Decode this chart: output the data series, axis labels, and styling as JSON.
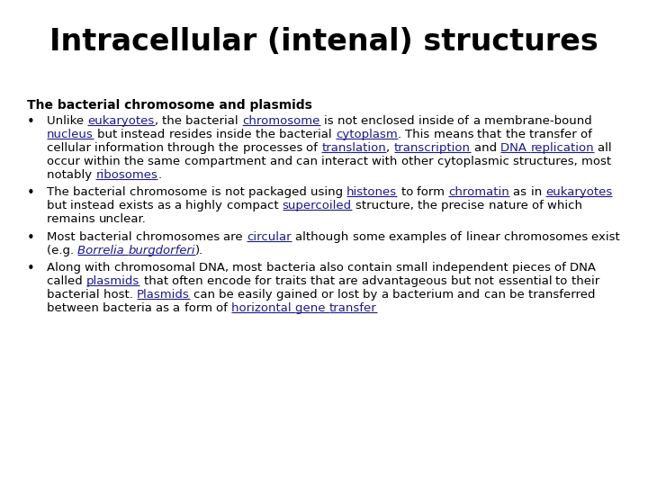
{
  "title": "Intracellular (intenal) structures",
  "background_color": "#ffffff",
  "title_fontsize": 24,
  "title_fontweight": "bold",
  "subtitle": "The bacterial chromosome and plasmids",
  "subtitle_fontsize": 10,
  "body_fontsize": 9.5,
  "link_color": "#1a1a8c",
  "text_color": "#000000",
  "bullets": [
    [
      {
        "text": "Unlike ",
        "style": "normal",
        "color": "#000000"
      },
      {
        "text": "eukaryotes",
        "style": "underline",
        "color": "#1a1a8c"
      },
      {
        "text": ", the bacterial ",
        "style": "normal",
        "color": "#000000"
      },
      {
        "text": "chromosome",
        "style": "underline",
        "color": "#1a1a8c"
      },
      {
        "text": " is not enclosed inside of a membrane-bound ",
        "style": "normal",
        "color": "#000000"
      },
      {
        "text": "nucleus",
        "style": "underline",
        "color": "#1a1a8c"
      },
      {
        "text": " but instead resides inside the bacterial ",
        "style": "normal",
        "color": "#000000"
      },
      {
        "text": "cytoplasm",
        "style": "underline",
        "color": "#1a1a8c"
      },
      {
        "text": ". This means that the transfer of cellular information through the processes of ",
        "style": "normal",
        "color": "#000000"
      },
      {
        "text": "translation",
        "style": "underline",
        "color": "#1a1a8c"
      },
      {
        "text": ", ",
        "style": "normal",
        "color": "#000000"
      },
      {
        "text": "transcription",
        "style": "underline",
        "color": "#1a1a8c"
      },
      {
        "text": " and ",
        "style": "normal",
        "color": "#000000"
      },
      {
        "text": "DNA replication",
        "style": "underline",
        "color": "#1a1a8c"
      },
      {
        "text": " all occur within the same compartment and can interact with other cytoplasmic structures, most notably ",
        "style": "normal",
        "color": "#000000"
      },
      {
        "text": "ribosomes",
        "style": "underline",
        "color": "#1a1a8c"
      },
      {
        "text": ".",
        "style": "normal",
        "color": "#000000"
      }
    ],
    [
      {
        "text": "The bacterial chromosome is not packaged using ",
        "style": "normal",
        "color": "#000000"
      },
      {
        "text": "histones",
        "style": "underline",
        "color": "#1a1a8c"
      },
      {
        "text": " to form ",
        "style": "normal",
        "color": "#000000"
      },
      {
        "text": "chromatin",
        "style": "underline",
        "color": "#1a1a8c"
      },
      {
        "text": " as in ",
        "style": "normal",
        "color": "#000000"
      },
      {
        "text": "eukaryotes",
        "style": "underline",
        "color": "#1a1a8c"
      },
      {
        "text": " but instead exists as a highly compact ",
        "style": "normal",
        "color": "#000000"
      },
      {
        "text": "supercoiled",
        "style": "underline",
        "color": "#1a1a8c"
      },
      {
        "text": " structure, the precise nature of which remains unclear.",
        "style": "normal",
        "color": "#000000"
      }
    ],
    [
      {
        "text": "Most bacterial chromosomes are ",
        "style": "normal",
        "color": "#000000"
      },
      {
        "text": "circular",
        "style": "underline",
        "color": "#1a1a8c"
      },
      {
        "text": " although some examples of linear chromosomes exist (e.g. ",
        "style": "normal",
        "color": "#000000"
      },
      {
        "text": "Borrelia burgdorferi",
        "style": "italic_underline",
        "color": "#1a1a8c"
      },
      {
        "text": ").",
        "style": "normal",
        "color": "#000000"
      }
    ],
    [
      {
        "text": "Along with chromosomal DNA, most bacteria also contain small independent pieces of DNA called ",
        "style": "normal",
        "color": "#000000"
      },
      {
        "text": "plasmids",
        "style": "underline",
        "color": "#1a1a8c"
      },
      {
        "text": " that often encode for traits that are advantageous but not essential to their bacterial host. ",
        "style": "normal",
        "color": "#000000"
      },
      {
        "text": "Plasmids",
        "style": "underline",
        "color": "#1a1a8c"
      },
      {
        "text": " can be easily gained or lost by a bacterium and can be transferred between bacteria as a form of ",
        "style": "normal",
        "color": "#000000"
      },
      {
        "text": "horizontal gene transfer",
        "style": "underline",
        "color": "#1a1a8c"
      }
    ]
  ]
}
